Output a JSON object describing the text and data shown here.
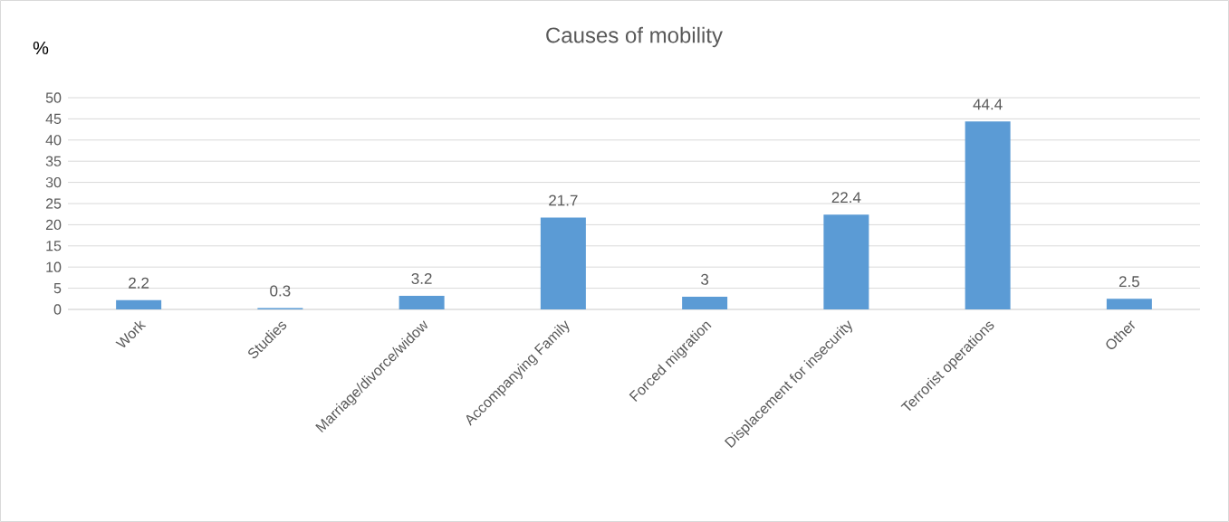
{
  "chart_data": {
    "type": "bar",
    "title": "Causes of mobility",
    "ylabel": "%",
    "categories": [
      "Work",
      "Studies",
      "Marriage/divorce/widow",
      "Accompanying Family",
      "Forced migration",
      "Displacement for insecurity",
      "Terrorist operations",
      "Other"
    ],
    "values": [
      2.2,
      0.3,
      3.2,
      21.7,
      3,
      22.4,
      44.4,
      2.5
    ],
    "color": "#5b9bd5",
    "ylim": [
      0,
      50
    ],
    "yticks": [
      0,
      5,
      10,
      15,
      20,
      25,
      30,
      35,
      40,
      45,
      50
    ],
    "grid": "y",
    "data_labels": true
  }
}
